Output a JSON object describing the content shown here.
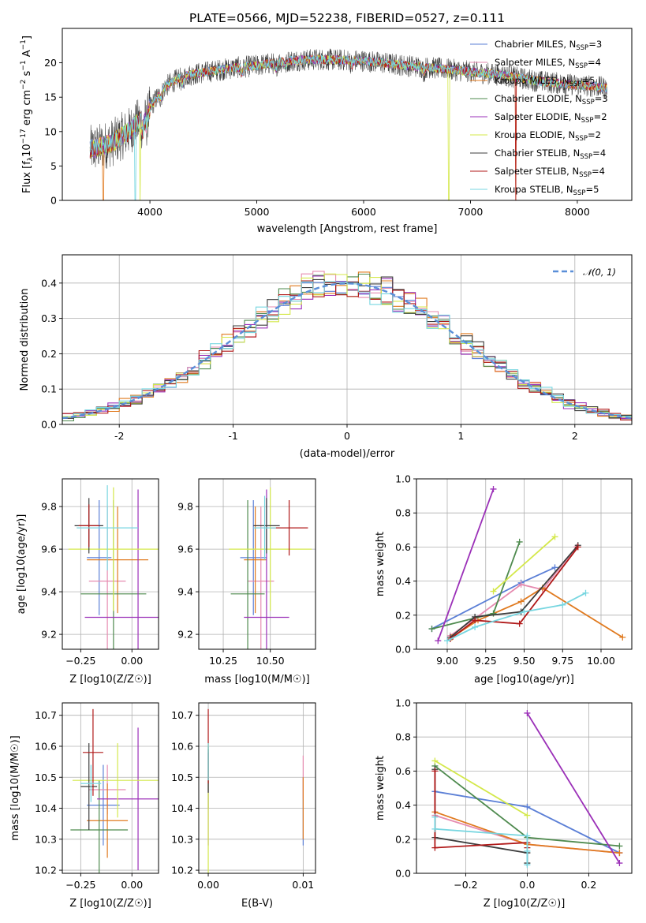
{
  "figure": {
    "title": "PLATE=0566, MJD=52238, FIBERID=0527, z=0.111"
  },
  "colors": {
    "blue": "#5b7fd6",
    "pink": "#e68bb0",
    "orange": "#e07a1f",
    "green": "#4e8a4e",
    "purple": "#9b30b8",
    "yellow": "#d4e84a",
    "dark": "#3c3c3c",
    "red": "#b01818",
    "cyan": "#77d6e0",
    "grid": "#b0b0b0",
    "normal": "#5a8fd8"
  },
  "chart_data": [
    {
      "id": "spectrum",
      "type": "line",
      "xlabel": "wavelength [Angstrom, rest frame]",
      "ylabel": "Flux [f",
      "ylabel_parts": [
        "Flux [f",
        "λ",
        "10",
        "−17",
        " erg cm",
        "−2",
        " s",
        "−1",
        " A",
        "−1",
        "]"
      ],
      "xlim": [
        3180,
        8510
      ],
      "ylim": [
        0,
        25
      ],
      "xticks": [
        4000,
        5000,
        6000,
        7000,
        8000
      ],
      "yticks": [
        0,
        5,
        10,
        15,
        20
      ],
      "grid": false,
      "legend": "top-right",
      "continuum_x": [
        3420,
        3500,
        3650,
        3800,
        3950,
        4050,
        4150,
        4300,
        4500,
        4800,
        5000,
        5300,
        5600,
        6000,
        6400,
        6700,
        7000,
        7300,
        7600,
        7900,
        8150,
        8280
      ],
      "continuum_y": [
        7.4,
        7.6,
        8.4,
        10.0,
        12.2,
        14.6,
        16.6,
        18.0,
        18.6,
        19.3,
        19.6,
        20.3,
        20.5,
        20.3,
        19.6,
        19.2,
        18.7,
        18.2,
        17.4,
        16.9,
        16.6,
        16.3
      ],
      "series": [
        {
          "name": "Chabrier MILES",
          "n_ssp": 3,
          "color": "blue"
        },
        {
          "name": "Salpeter MILES",
          "n_ssp": 4,
          "color": "pink"
        },
        {
          "name": "Kroupa MILES",
          "n_ssp": 5,
          "color": "orange"
        },
        {
          "name": "Chabrier ELODIE",
          "n_ssp": 3,
          "color": "green"
        },
        {
          "name": "Salpeter ELODIE",
          "n_ssp": 2,
          "color": "purple"
        },
        {
          "name": "Kroupa ELODIE",
          "n_ssp": 2,
          "color": "yellow"
        },
        {
          "name": "Chabrier STELIB",
          "n_ssp": 4,
          "color": "dark"
        },
        {
          "name": "Salpeter STELIB",
          "n_ssp": 4,
          "color": "red"
        },
        {
          "name": "Kroupa STELIB",
          "n_ssp": 5,
          "color": "cyan"
        }
      ]
    },
    {
      "id": "residuals",
      "type": "histogram",
      "xlabel": "(data-model)/error",
      "ylabel": "Normed distribution",
      "xlim": [
        -2.5,
        2.5
      ],
      "ylim": [
        0,
        0.48
      ],
      "xticks": [
        -2,
        -1,
        0,
        1,
        2
      ],
      "yticks": [
        0.0,
        0.1,
        0.2,
        0.3,
        0.4
      ],
      "grid": true,
      "legend": "top-right",
      "legend_label": "𝒩(0, 1)",
      "bin_width": 0.1
    },
    {
      "id": "age_vs_Z",
      "type": "errorbar",
      "xlabel": "Z [log10(Z/Z☉)]",
      "ylabel": "age  [log10(age/yr)]",
      "xlim": [
        -0.34,
        0.13
      ],
      "ylim": [
        9.13,
        9.93
      ],
      "xticks": [
        -0.25,
        0.0
      ],
      "xticklabels": [
        "−0.25",
        "0.00"
      ],
      "yticks": [
        9.2,
        9.4,
        9.6,
        9.8
      ],
      "points": [
        {
          "color": "blue",
          "x": -0.16,
          "xerr": 0.06,
          "y": 9.56,
          "yerr": 0.27
        },
        {
          "color": "pink",
          "x": -0.12,
          "xerr": 0.09,
          "y": 9.45,
          "yerr": 0.35
        },
        {
          "color": "orange",
          "x": -0.07,
          "xerr": 0.15,
          "y": 9.55,
          "yerr": 0.25
        },
        {
          "color": "green",
          "x": -0.09,
          "xerr": 0.16,
          "y": 9.39,
          "yerr": 0.44
        },
        {
          "color": "purple",
          "x": 0.03,
          "xerr": 0.26,
          "y": 9.28,
          "yerr": 0.6
        },
        {
          "color": "yellow",
          "x": -0.09,
          "xerr": 0.22,
          "y": 9.6,
          "yerr": 0.29
        },
        {
          "color": "dark",
          "x": -0.21,
          "xerr": 0.07,
          "y": 9.71,
          "yerr": 0.13
        },
        {
          "color": "red",
          "x": -0.21,
          "xerr": 0.05,
          "y": 9.71,
          "yerr": 0.1
        },
        {
          "color": "cyan",
          "x": -0.12,
          "xerr": 0.15,
          "y": 9.7,
          "yerr": 0.2
        }
      ]
    },
    {
      "id": "age_vs_mass",
      "type": "errorbar",
      "xlabel": "mass [log10(M/M☉)]",
      "ylabel": "",
      "xlim": [
        10.12,
        10.74
      ],
      "ylim": [
        9.13,
        9.93
      ],
      "xticks": [
        10.25,
        10.5
      ],
      "xticklabels": [
        "10.25",
        "10.50"
      ],
      "yticks": [
        9.2,
        9.4,
        9.6,
        9.8
      ],
      "points": [
        {
          "color": "blue",
          "x": 10.41,
          "xerr": 0.07,
          "y": 9.56,
          "yerr": 0.27
        },
        {
          "color": "pink",
          "x": 10.45,
          "xerr": 0.07,
          "y": 9.45,
          "yerr": 0.35
        },
        {
          "color": "orange",
          "x": 10.42,
          "xerr": 0.06,
          "y": 9.55,
          "yerr": 0.25
        },
        {
          "color": "green",
          "x": 10.38,
          "xerr": 0.09,
          "y": 9.39,
          "yerr": 0.44
        },
        {
          "color": "purple",
          "x": 10.48,
          "xerr": 0.12,
          "y": 9.28,
          "yerr": 0.6
        },
        {
          "color": "yellow",
          "x": 10.5,
          "xerr": 0.22,
          "y": 9.6,
          "yerr": 0.29
        },
        {
          "color": "dark",
          "x": 10.48,
          "xerr": 0.07,
          "y": 9.71,
          "yerr": 0.13
        },
        {
          "color": "red",
          "x": 10.6,
          "xerr": 0.1,
          "y": 9.7,
          "yerr": 0.13
        },
        {
          "color": "cyan",
          "x": 10.47,
          "xerr": 0.06,
          "y": 9.7,
          "yerr": 0.15
        }
      ]
    },
    {
      "id": "mass_weight_vs_age",
      "type": "line",
      "xlabel": "age  [log10(age/yr)]",
      "ylabel": "mass weight",
      "xlim": [
        8.8,
        10.2
      ],
      "ylim": [
        0,
        1.0
      ],
      "xticks": [
        9.0,
        9.25,
        9.5,
        9.75,
        10.0
      ],
      "xticklabels": [
        "9.00",
        "9.25",
        "9.50",
        "9.75",
        "10.00"
      ],
      "yticks": [
        0.0,
        0.2,
        0.4,
        0.6,
        0.8,
        1.0
      ],
      "yticklabels": [
        "0.0",
        "0.2",
        "0.4",
        "0.6",
        "0.8",
        "1.0"
      ],
      "grid": true,
      "series": [
        {
          "color": "blue",
          "x": [
            8.9,
            9.48,
            9.7
          ],
          "y": [
            0.12,
            0.39,
            0.48
          ]
        },
        {
          "color": "pink",
          "x": [
            9.02,
            9.18,
            9.48,
            9.62,
            9.84
          ],
          "y": [
            0.08,
            0.18,
            0.38,
            0.35,
            0.6
          ]
        },
        {
          "color": "orange",
          "x": [
            9.03,
            9.2,
            9.48,
            9.62,
            10.14
          ],
          "y": [
            0.07,
            0.17,
            0.28,
            0.36,
            0.07
          ]
        },
        {
          "color": "green",
          "x": [
            8.9,
            9.3,
            9.47
          ],
          "y": [
            0.12,
            0.21,
            0.63
          ]
        },
        {
          "color": "purple",
          "x": [
            8.94,
            9.3
          ],
          "y": [
            0.05,
            0.94
          ]
        },
        {
          "color": "yellow",
          "x": [
            9.3,
            9.7
          ],
          "y": [
            0.34,
            0.66
          ]
        },
        {
          "color": "dark",
          "x": [
            9.02,
            9.18,
            9.48,
            9.85
          ],
          "y": [
            0.07,
            0.19,
            0.22,
            0.61
          ]
        },
        {
          "color": "red",
          "x": [
            9.02,
            9.18,
            9.47,
            9.85
          ],
          "y": [
            0.06,
            0.17,
            0.15,
            0.6
          ]
        },
        {
          "color": "cyan",
          "x": [
            9.0,
            9.18,
            9.5,
            9.75,
            9.9
          ],
          "y": [
            0.05,
            0.13,
            0.22,
            0.26,
            0.33
          ]
        }
      ]
    },
    {
      "id": "mass_vs_Z",
      "type": "errorbar",
      "xlabel": "Z [log10(Z/Z☉)]",
      "ylabel": "mass [log10(M/M☉)]",
      "xlim": [
        -0.34,
        0.13
      ],
      "ylim": [
        10.19,
        10.74
      ],
      "xticks": [
        -0.25,
        0.0
      ],
      "xticklabels": [
        "−0.25",
        "0.00"
      ],
      "yticks": [
        10.2,
        10.3,
        10.4,
        10.5,
        10.6,
        10.7
      ],
      "yticklabels": [
        "10.2",
        "10.3",
        "10.4",
        "10.5",
        "10.6",
        "10.7"
      ],
      "points": [
        {
          "color": "blue",
          "x": -0.14,
          "xerr": 0.08,
          "y": 10.41,
          "yerr": 0.13
        },
        {
          "color": "pink",
          "x": -0.12,
          "xerr": 0.09,
          "y": 10.46,
          "yerr": 0.08
        },
        {
          "color": "orange",
          "x": -0.12,
          "xerr": 0.1,
          "y": 10.36,
          "yerr": 0.12
        },
        {
          "color": "green",
          "x": -0.16,
          "xerr": 0.14,
          "y": 10.33,
          "yerr": 0.16
        },
        {
          "color": "purple",
          "x": 0.03,
          "xerr": 0.2,
          "y": 10.43,
          "yerr": 0.23
        },
        {
          "color": "yellow",
          "x": -0.07,
          "xerr": 0.22,
          "y": 10.49,
          "yerr": 0.12
        },
        {
          "color": "dark",
          "x": -0.21,
          "xerr": 0.04,
          "y": 10.47,
          "yerr": 0.14
        },
        {
          "color": "red",
          "x": -0.19,
          "xerr": 0.05,
          "y": 10.58,
          "yerr": 0.14
        },
        {
          "color": "cyan",
          "x": -0.2,
          "xerr": 0.05,
          "y": 10.48,
          "yerr": 0.06
        }
      ]
    },
    {
      "id": "mass_vs_ebv",
      "type": "errorbar",
      "xlabel": "E(B-V)",
      "ylabel": "",
      "xlim": [
        -0.001,
        0.0113
      ],
      "ylim": [
        10.19,
        10.74
      ],
      "xticks": [
        0.0,
        0.01
      ],
      "xticklabels": [
        "0.00",
        "0.01"
      ],
      "yticks": [
        10.2,
        10.3,
        10.4,
        10.5,
        10.6,
        10.7
      ],
      "yticklabels": [
        "10.2",
        "10.3",
        "10.4",
        "10.5",
        "10.6",
        "10.7"
      ],
      "points": [
        {
          "color": "blue",
          "x": 0.01,
          "xerr": 0,
          "y": 10.39,
          "yerr": 0.11
        },
        {
          "color": "pink",
          "x": 0.01,
          "xerr": 0,
          "y": 10.5,
          "yerr": 0.07
        },
        {
          "color": "orange",
          "x": 0.01,
          "xerr": 0,
          "y": 10.4,
          "yerr": 0.1
        },
        {
          "color": "green",
          "x": 0.0,
          "xerr": 0,
          "y": 10.5,
          "yerr": 0.1
        },
        {
          "color": "purple",
          "x": 0.0,
          "xerr": 0,
          "y": 10.43,
          "yerr": 0.15
        },
        {
          "color": "yellow",
          "x": 0.0,
          "xerr": 0,
          "y": 10.4,
          "yerr": 0.21
        },
        {
          "color": "dark",
          "x": 0.0,
          "xerr": 0,
          "y": 10.52,
          "yerr": 0.07
        },
        {
          "color": "red",
          "x": 0.0,
          "xerr": 0,
          "y": 10.6,
          "yerr": 0.12
        },
        {
          "color": "cyan",
          "x": 0.0,
          "xerr": 0,
          "y": 10.55,
          "yerr": 0.06
        }
      ]
    },
    {
      "id": "mass_weight_vs_Z",
      "type": "line",
      "xlabel": "Z [log10(Z/Z☉)]",
      "ylabel": "mass weight",
      "xlim": [
        -0.36,
        0.34
      ],
      "ylim": [
        0,
        1.0
      ],
      "xticks": [
        -0.2,
        0.0,
        0.2
      ],
      "xticklabels": [
        "−0.2",
        "0.0",
        "0.2"
      ],
      "yticks": [
        0.0,
        0.2,
        0.4,
        0.6,
        0.8,
        1.0
      ],
      "yticklabels": [
        "0.0",
        "0.2",
        "0.4",
        "0.6",
        "0.8",
        "1.0"
      ],
      "grid": true,
      "series": [
        {
          "color": "blue",
          "x": [
            -0.3,
            0.0,
            0.3
          ],
          "y": [
            0.48,
            0.39,
            0.12
          ]
        },
        {
          "color": "pink",
          "x": [
            -0.3,
            0.0,
            0.3
          ],
          "y": [
            0.34,
            0.17,
            0.12
          ]
        },
        {
          "color": "orange",
          "x": [
            -0.3,
            0.0,
            0.3
          ],
          "y": [
            0.36,
            0.17,
            0.12
          ]
        },
        {
          "color": "green",
          "x": [
            -0.3,
            0.0,
            0.3
          ],
          "y": [
            0.63,
            0.21,
            0.16
          ]
        },
        {
          "color": "purple",
          "x": [
            0.0,
            0.3
          ],
          "y": [
            0.94,
            0.06
          ]
        },
        {
          "color": "yellow",
          "x": [
            -0.3,
            0.0
          ],
          "y": [
            0.66,
            0.34
          ]
        },
        {
          "color": "dark",
          "x": [
            -0.3,
            -0.3,
            0.0,
            0.0
          ],
          "y": [
            0.61,
            0.21,
            0.12,
            0.06
          ]
        },
        {
          "color": "red",
          "x": [
            -0.3,
            -0.3,
            0.0,
            0.0
          ],
          "y": [
            0.6,
            0.15,
            0.18,
            0.15
          ]
        },
        {
          "color": "cyan",
          "x": [
            -0.3,
            -0.3,
            0.0,
            0.0,
            0.0
          ],
          "y": [
            0.33,
            0.26,
            0.22,
            0.13,
            0.05
          ]
        }
      ]
    }
  ]
}
